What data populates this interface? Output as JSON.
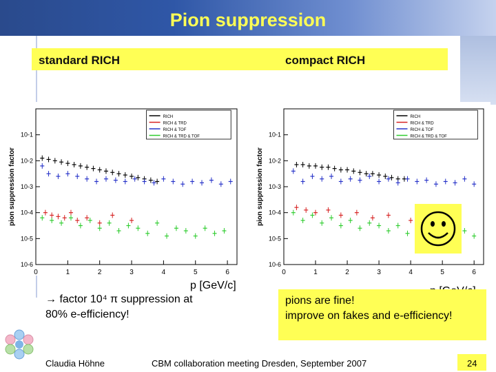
{
  "title": "Pion suppression",
  "labels": {
    "left": "standard RICH",
    "right": "compact RICH"
  },
  "plot_ylabel": "pion suppression factor",
  "x_unit_label": "p [GeV/c]",
  "legend": [
    "RICH",
    "RICH & TRD",
    "RICH & TOF",
    "RICH & TRD & TOF"
  ],
  "x_ticks": [
    "0",
    "1",
    "2",
    "3",
    "4",
    "5",
    "6"
  ],
  "y_ticks": [
    "10-6",
    "10-5",
    "10-4",
    "10-3",
    "10-2",
    "10-1"
  ],
  "conclusion_left": {
    "line1": "→ factor 10⁴ π suppression at",
    "line2": "80% e-efficiency!"
  },
  "conclusion_right": {
    "line1": "pions are fine!",
    "line2": "improve on fakes and e-efficiency!"
  },
  "footer": {
    "author": "Claudia Höhne",
    "event": "CBM collaboration meeting Dresden, September 2007",
    "page": "24"
  },
  "colors": {
    "header_text": "#ffff55",
    "highlight": "#ffff55",
    "rich": "#000000",
    "trd": "#d62020",
    "tof": "#2430c8",
    "all": "#2dcc2d"
  },
  "chart_data": [
    {
      "type": "scatter",
      "title": "",
      "xlabel": "p [GeV/c]",
      "ylabel": "pion suppression factor",
      "xlim": [
        0,
        6.3
      ],
      "ylim": [
        -6,
        0
      ],
      "yscale": "log",
      "legend_position": "top-right",
      "series": [
        {
          "name": "RICH",
          "x": [
            0.2,
            0.4,
            0.6,
            0.8,
            1.0,
            1.2,
            1.4,
            1.6,
            1.8,
            2.0,
            2.2,
            2.4,
            2.6,
            2.8,
            3.0,
            3.2,
            3.4,
            3.6,
            3.8
          ],
          "y": [
            -1.9,
            -1.95,
            -2.0,
            -2.05,
            -2.1,
            -2.15,
            -2.2,
            -2.25,
            -2.3,
            -2.35,
            -2.4,
            -2.45,
            -2.5,
            -2.55,
            -2.6,
            -2.65,
            -2.7,
            -2.75,
            -2.8
          ]
        },
        {
          "name": "RICH & TRD",
          "x": [
            0.3,
            0.5,
            0.7,
            0.9,
            1.1,
            1.3,
            1.6,
            2.0,
            2.4,
            3.0
          ],
          "y": [
            -4.0,
            -4.1,
            -4.15,
            -4.2,
            -4.0,
            -4.3,
            -4.2,
            -4.4,
            -4.1,
            -4.3
          ]
        },
        {
          "name": "RICH & TOF",
          "x": [
            0.2,
            0.4,
            0.7,
            1.0,
            1.3,
            1.6,
            1.9,
            2.2,
            2.5,
            2.8,
            3.1,
            3.4,
            3.7,
            4.0,
            4.3,
            4.6,
            4.9,
            5.2,
            5.5,
            5.8,
            6.1
          ],
          "y": [
            -2.2,
            -2.5,
            -2.6,
            -2.5,
            -2.6,
            -2.7,
            -2.8,
            -2.7,
            -2.75,
            -2.8,
            -2.7,
            -2.8,
            -2.85,
            -2.7,
            -2.8,
            -2.9,
            -2.8,
            -2.85,
            -2.75,
            -2.9,
            -2.8
          ]
        },
        {
          "name": "RICH & TRD & TOF",
          "x": [
            0.2,
            0.5,
            0.8,
            1.1,
            1.4,
            1.7,
            2.0,
            2.3,
            2.6,
            2.9,
            3.2,
            3.5,
            3.8,
            4.1,
            4.4,
            4.7,
            5.0,
            5.3,
            5.6,
            5.9
          ],
          "y": [
            -4.2,
            -4.3,
            -4.4,
            -4.2,
            -4.5,
            -4.3,
            -4.6,
            -4.4,
            -4.7,
            -4.5,
            -4.6,
            -4.8,
            -4.4,
            -4.9,
            -4.6,
            -4.7,
            -4.9,
            -4.6,
            -4.8,
            -4.7
          ]
        }
      ]
    },
    {
      "type": "scatter",
      "title": "",
      "xlabel": "p [GeV/c]",
      "ylabel": "pion suppression factor",
      "xlim": [
        0,
        6.3
      ],
      "ylim": [
        -6,
        0
      ],
      "yscale": "log",
      "legend_position": "top-right",
      "series": [
        {
          "name": "RICH",
          "x": [
            0.4,
            0.6,
            0.8,
            1.0,
            1.2,
            1.4,
            1.6,
            1.8,
            2.0,
            2.2,
            2.4,
            2.6,
            2.8,
            3.0,
            3.2,
            3.4,
            3.6,
            3.8
          ],
          "y": [
            -2.15,
            -2.15,
            -2.2,
            -2.2,
            -2.25,
            -2.25,
            -2.3,
            -2.35,
            -2.35,
            -2.4,
            -2.45,
            -2.5,
            -2.5,
            -2.55,
            -2.6,
            -2.65,
            -2.7,
            -2.7
          ]
        },
        {
          "name": "RICH & TRD",
          "x": [
            0.4,
            0.7,
            1.0,
            1.4,
            1.8,
            2.3,
            2.8,
            3.3,
            4.0
          ],
          "y": [
            -3.8,
            -3.9,
            -4.0,
            -3.9,
            -4.1,
            -4.0,
            -4.2,
            -4.1,
            -4.3
          ]
        },
        {
          "name": "RICH & TOF",
          "x": [
            0.3,
            0.6,
            0.9,
            1.2,
            1.5,
            1.8,
            2.1,
            2.4,
            2.7,
            3.0,
            3.3,
            3.6,
            3.9,
            4.2,
            4.5,
            4.8,
            5.1,
            5.4,
            5.7,
            6.0
          ],
          "y": [
            -2.4,
            -2.8,
            -2.6,
            -2.7,
            -2.6,
            -2.8,
            -2.7,
            -2.75,
            -2.6,
            -2.8,
            -2.7,
            -2.85,
            -2.7,
            -2.8,
            -2.75,
            -2.9,
            -2.8,
            -2.85,
            -2.7,
            -2.9
          ]
        },
        {
          "name": "RICH & TRD & TOF",
          "x": [
            0.3,
            0.6,
            0.9,
            1.2,
            1.5,
            1.8,
            2.1,
            2.4,
            2.7,
            3.0,
            3.3,
            3.6,
            3.9,
            4.2,
            4.5,
            4.8,
            5.1,
            5.4,
            5.7,
            6.0
          ],
          "y": [
            -4.0,
            -4.3,
            -4.1,
            -4.4,
            -4.2,
            -4.5,
            -4.3,
            -4.6,
            -4.4,
            -4.5,
            -4.7,
            -4.5,
            -4.8,
            -4.6,
            -4.7,
            -4.9,
            -4.6,
            -4.8,
            -4.7,
            -4.9
          ]
        }
      ]
    }
  ]
}
